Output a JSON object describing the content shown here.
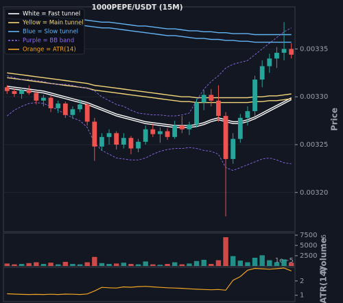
{
  "chart_data": [
    {
      "type": "candlestick",
      "title": "1000PEPE/USDT (15M)",
      "ylabel": "Price",
      "up_color": "#26a69a",
      "down_color": "#ef5350",
      "ylim": [
        0.003159,
        0.003394
      ],
      "yticks": [
        {
          "value": 0.0032,
          "label": "0.00320"
        },
        0.00325,
        {
          "value": 0.0033,
          "label": "0.00330"
        },
        0.00335
      ],
      "grid": true,
      "open": [
        0.00331,
        0.003306,
        0.003303,
        0.003307,
        0.003304,
        0.003296,
        0.003299,
        0.003288,
        0.003293,
        0.003281,
        0.003287,
        0.003292,
        0.003274,
        0.003248,
        0.003258,
        0.003262,
        0.00325,
        0.003257,
        0.003246,
        0.003253,
        0.003266,
        0.003261,
        0.003264,
        0.003258,
        0.00327,
        0.003266,
        0.003271,
        0.003294,
        0.003302,
        0.003296,
        0.00328,
        0.003235,
        0.003256,
        0.003278,
        0.003285,
        0.003318,
        0.003332,
        0.00334,
        0.003346,
        0.00335
      ],
      "high": [
        0.003312,
        0.003309,
        0.00331,
        0.003312,
        0.003306,
        0.003302,
        0.003301,
        0.003296,
        0.003295,
        0.00329,
        0.003297,
        0.003294,
        0.003278,
        0.003262,
        0.003266,
        0.003264,
        0.003262,
        0.003259,
        0.003256,
        0.00327,
        0.003272,
        0.003268,
        0.003267,
        0.003275,
        0.00328,
        0.003274,
        0.003298,
        0.003307,
        0.003308,
        0.003312,
        0.003284,
        0.003262,
        0.003282,
        0.00329,
        0.003322,
        0.003338,
        0.003345,
        0.003352,
        0.003378,
        0.003356
      ],
      "low": [
        0.003303,
        0.0033,
        0.003298,
        0.003302,
        0.003292,
        0.00329,
        0.003284,
        0.003283,
        0.003278,
        0.003277,
        0.003284,
        0.00327,
        0.003233,
        0.003244,
        0.00325,
        0.003245,
        0.003246,
        0.00324,
        0.003242,
        0.00325,
        0.003258,
        0.003252,
        0.003255,
        0.003256,
        0.003262,
        0.00326,
        0.003268,
        0.003286,
        0.00329,
        0.003274,
        0.003175,
        0.00323,
        0.003252,
        0.00327,
        0.00328,
        0.00331,
        0.003325,
        0.00333,
        0.003338,
        0.00334
      ],
      "close": [
        0.003306,
        0.003303,
        0.003307,
        0.003304,
        0.003296,
        0.003299,
        0.003288,
        0.003293,
        0.003281,
        0.003287,
        0.003292,
        0.003274,
        0.003248,
        0.003258,
        0.003262,
        0.00325,
        0.003257,
        0.003246,
        0.003253,
        0.003266,
        0.003261,
        0.003264,
        0.003258,
        0.00327,
        0.003266,
        0.003271,
        0.003294,
        0.003302,
        0.003296,
        0.00328,
        0.003235,
        0.003256,
        0.003278,
        0.003285,
        0.003318,
        0.003332,
        0.00334,
        0.003346,
        0.00335,
        0.003344
      ],
      "series": [
        {
          "name": "White = Fast tunnel",
          "color": "#ffffff",
          "dash": false,
          "upper": [
            0.003311,
            0.00331,
            0.003309,
            0.003308,
            0.003307,
            0.003306,
            0.003304,
            0.003302,
            0.0033,
            0.003298,
            0.003296,
            0.003294,
            0.003291,
            0.003288,
            0.003285,
            0.003282,
            0.00328,
            0.003278,
            0.003276,
            0.003274,
            0.003273,
            0.003272,
            0.003271,
            0.00327,
            0.00327,
            0.00327,
            0.003271,
            0.003273,
            0.003276,
            0.003278,
            0.003276,
            0.003274,
            0.003274,
            0.003276,
            0.003279,
            0.003283,
            0.003287,
            0.003291,
            0.003295,
            0.003299
          ],
          "lower": [
            0.003309,
            0.003308,
            0.003307,
            0.003306,
            0.003305,
            0.003304,
            0.003302,
            0.0033,
            0.003298,
            0.003296,
            0.003294,
            0.003292,
            0.003289,
            0.003286,
            0.003283,
            0.00328,
            0.003278,
            0.003276,
            0.003274,
            0.003272,
            0.003271,
            0.00327,
            0.003269,
            0.003268,
            0.003268,
            0.003268,
            0.003269,
            0.003271,
            0.003274,
            0.003276,
            0.003274,
            0.003272,
            0.003272,
            0.003274,
            0.003277,
            0.003281,
            0.003285,
            0.003289,
            0.003293,
            0.003297
          ]
        },
        {
          "name": "Yellow = Main tunnel",
          "color": "#f5d67a",
          "dash": false,
          "upper": [
            0.003325,
            0.003324,
            0.003323,
            0.003322,
            0.003321,
            0.00332,
            0.003319,
            0.003318,
            0.003317,
            0.003316,
            0.003315,
            0.003314,
            0.003312,
            0.003311,
            0.00331,
            0.003309,
            0.003308,
            0.003307,
            0.003306,
            0.003305,
            0.003304,
            0.003303,
            0.003302,
            0.003301,
            0.0033,
            0.0033,
            0.003299,
            0.003299,
            0.003299,
            0.003299,
            0.003299,
            0.003299,
            0.003299,
            0.003299,
            0.0033,
            0.0033,
            0.003301,
            0.003301,
            0.003302,
            0.003303
          ],
          "lower": [
            0.00332,
            0.003319,
            0.003318,
            0.003317,
            0.003316,
            0.003315,
            0.003314,
            0.003313,
            0.003312,
            0.003311,
            0.00331,
            0.003309,
            0.003307,
            0.003306,
            0.003305,
            0.003304,
            0.003303,
            0.003302,
            0.003301,
            0.0033,
            0.003299,
            0.003298,
            0.003297,
            0.003296,
            0.003295,
            0.003295,
            0.003294,
            0.003294,
            0.003294,
            0.003294,
            0.003294,
            0.003294,
            0.003294,
            0.003294,
            0.003295,
            0.003295,
            0.003296,
            0.003296,
            0.003297,
            0.003298
          ]
        },
        {
          "name": "Blue = Slow tunnel",
          "color": "#64b5f6",
          "dash": false,
          "upper": [
            0.003388,
            0.003387,
            0.003387,
            0.003386,
            0.003385,
            0.003385,
            0.003384,
            0.003383,
            0.003382,
            0.003382,
            0.003381,
            0.00338,
            0.003379,
            0.003378,
            0.003378,
            0.003377,
            0.003376,
            0.003375,
            0.003374,
            0.003374,
            0.003373,
            0.003372,
            0.003371,
            0.003371,
            0.00337,
            0.003369,
            0.003369,
            0.003368,
            0.003368,
            0.003367,
            0.003367,
            0.003366,
            0.003366,
            0.003366,
            0.003365,
            0.003365,
            0.003365,
            0.003365,
            0.003365,
            0.003365
          ],
          "lower": [
            0.003382,
            0.003381,
            0.003381,
            0.00338,
            0.003379,
            0.003379,
            0.003378,
            0.003377,
            0.003376,
            0.003376,
            0.003375,
            0.003374,
            0.003373,
            0.003372,
            0.003372,
            0.003371,
            0.00337,
            0.003369,
            0.003368,
            0.003367,
            0.003366,
            0.003365,
            0.003364,
            0.003364,
            0.003363,
            0.003362,
            0.003361,
            0.003361,
            0.00336,
            0.00336,
            0.003359,
            0.003359,
            0.003358,
            0.003358,
            0.003357,
            0.003357,
            0.003357,
            0.003357,
            0.003357,
            0.003357
          ]
        },
        {
          "name": "Purple = BB band",
          "color": "#8e6cf0",
          "dash": true,
          "upper": [
            0.003322,
            0.00332,
            0.003318,
            0.003318,
            0.003317,
            0.003316,
            0.003314,
            0.003313,
            0.003313,
            0.003312,
            0.00331,
            0.003309,
            0.003306,
            0.0033,
            0.003296,
            0.003292,
            0.00329,
            0.003286,
            0.003283,
            0.003282,
            0.003281,
            0.003281,
            0.00328,
            0.00328,
            0.003281,
            0.003283,
            0.003296,
            0.003308,
            0.003316,
            0.003322,
            0.00333,
            0.003334,
            0.003336,
            0.003338,
            0.003344,
            0.00335,
            0.003356,
            0.003362,
            0.003368,
            0.003372
          ],
          "lower": [
            0.00328,
            0.003286,
            0.00329,
            0.003293,
            0.003294,
            0.003293,
            0.00329,
            0.003286,
            0.003282,
            0.003278,
            0.003275,
            0.003268,
            0.003252,
            0.003244,
            0.00324,
            0.003236,
            0.003235,
            0.003234,
            0.003234,
            0.003236,
            0.00324,
            0.003243,
            0.003245,
            0.003246,
            0.003246,
            0.003247,
            0.003246,
            0.003244,
            0.003243,
            0.00324,
            0.003226,
            0.003223,
            0.003226,
            0.003229,
            0.003232,
            0.003235,
            0.003236,
            0.003234,
            0.003231,
            0.00323
          ]
        }
      ]
    },
    {
      "type": "bar",
      "ylabel": "Volume",
      "offset_label": "1e6",
      "ylim": [
        0,
        8000
      ],
      "yticks": [
        2500,
        5000,
        7500
      ],
      "values": [
        600,
        400,
        500,
        700,
        900,
        500,
        800,
        400,
        1000,
        500,
        400,
        900,
        2200,
        700,
        500,
        600,
        800,
        500,
        400,
        1100,
        400,
        300,
        500,
        900,
        400,
        600,
        1200,
        1500,
        500,
        1400,
        7000,
        2400,
        1300,
        900,
        2000,
        2600,
        1400,
        900,
        1600,
        800
      ]
    },
    {
      "type": "line",
      "ylabel": "ATR(14)",
      "name": "Orange = ATR(14)",
      "color": "#f5a623",
      "offset_label": "1e−5",
      "ylim": [
        0.55,
        2.95
      ],
      "yticks": [
        1,
        2
      ],
      "values": [
        1.1,
        1.08,
        1.06,
        1.05,
        1.06,
        1.05,
        1.07,
        1.05,
        1.08,
        1.07,
        1.05,
        1.09,
        1.3,
        1.55,
        1.52,
        1.5,
        1.58,
        1.56,
        1.6,
        1.62,
        1.58,
        1.55,
        1.52,
        1.5,
        1.48,
        1.45,
        1.42,
        1.4,
        1.38,
        1.4,
        1.35,
        2.05,
        2.3,
        2.75,
        2.88,
        2.85,
        2.82,
        2.86,
        2.9,
        2.7
      ]
    }
  ]
}
